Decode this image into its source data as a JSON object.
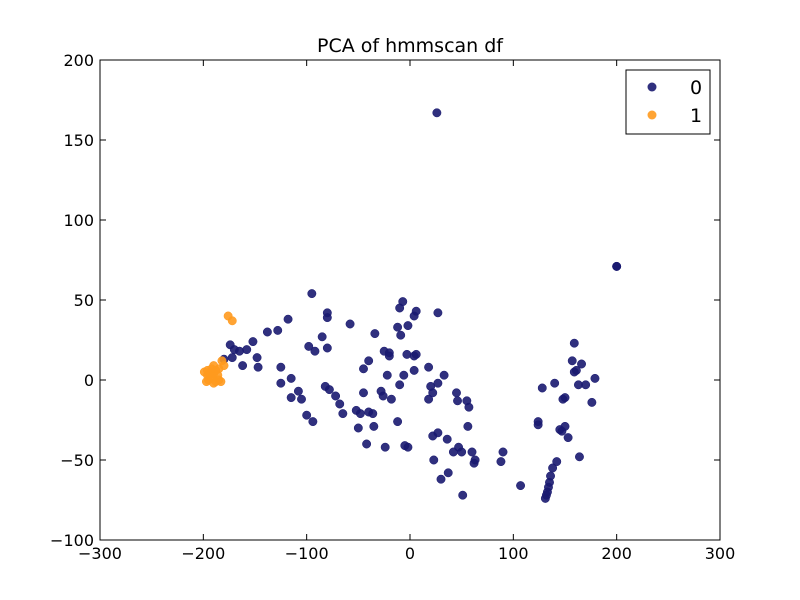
{
  "chart_data": {
    "type": "scatter",
    "title": "PCA of hmmscan df",
    "xlabel": "",
    "ylabel": "",
    "xlim": [
      -300,
      300
    ],
    "ylim": [
      -100,
      200
    ],
    "xticks": [
      -300,
      -200,
      -100,
      0,
      100,
      200,
      300
    ],
    "yticks": [
      -100,
      -50,
      0,
      50,
      100,
      150,
      200
    ],
    "xtick_labels": [
      "−300",
      "−200",
      "−100",
      "0",
      "100",
      "200",
      "300"
    ],
    "ytick_labels": [
      "−100",
      "−50",
      "0",
      "50",
      "100",
      "150",
      "200"
    ],
    "grid": false,
    "legend_position": "top-right",
    "series": [
      {
        "name": "0",
        "color": "#191970",
        "points": [
          [
            26,
            167
          ],
          [
            200,
            71
          ],
          [
            200,
            71
          ],
          [
            -95,
            54
          ],
          [
            -58,
            35
          ],
          [
            -80,
            42
          ],
          [
            -80,
            39
          ],
          [
            -118,
            38
          ],
          [
            -138,
            30
          ],
          [
            -128,
            31
          ],
          [
            -85,
            27
          ],
          [
            -98,
            21
          ],
          [
            -92,
            18
          ],
          [
            -80,
            20
          ],
          [
            -34,
            29
          ],
          [
            -12,
            33
          ],
          [
            -7,
            49
          ],
          [
            -10,
            45
          ],
          [
            4,
            40
          ],
          [
            6,
            43
          ],
          [
            27,
            42
          ],
          [
            -2,
            34
          ],
          [
            -9,
            28
          ],
          [
            -25,
            18
          ],
          [
            -20,
            17
          ],
          [
            -20,
            15
          ],
          [
            -40,
            12
          ],
          [
            -45,
            7
          ],
          [
            -22,
            3
          ],
          [
            -6,
            3
          ],
          [
            -3,
            16
          ],
          [
            4,
            15
          ],
          [
            6,
            16
          ],
          [
            18,
            8
          ],
          [
            33,
            3
          ],
          [
            4,
            6
          ],
          [
            -180,
            13
          ],
          [
            -174,
            22
          ],
          [
            -170,
            19
          ],
          [
            -172,
            14
          ],
          [
            -165,
            18
          ],
          [
            -158,
            19
          ],
          [
            -152,
            24
          ],
          [
            -148,
            14
          ],
          [
            -147,
            8
          ],
          [
            -162,
            9
          ],
          [
            -125,
            8
          ],
          [
            -115,
            1
          ],
          [
            -125,
            -2
          ],
          [
            -108,
            -7
          ],
          [
            -115,
            -11
          ],
          [
            -105,
            -12
          ],
          [
            -100,
            -22
          ],
          [
            -94,
            -26
          ],
          [
            -82,
            -4
          ],
          [
            -78,
            -6
          ],
          [
            -72,
            -10
          ],
          [
            -68,
            -15
          ],
          [
            -65,
            -21
          ],
          [
            -52,
            -19
          ],
          [
            -48,
            -21
          ],
          [
            -50,
            -30
          ],
          [
            -45,
            -8
          ],
          [
            -40,
            -20
          ],
          [
            -36,
            -21
          ],
          [
            -42,
            -40
          ],
          [
            -35,
            -29
          ],
          [
            -28,
            -7
          ],
          [
            -26,
            -10
          ],
          [
            -24,
            -42
          ],
          [
            -18,
            -12
          ],
          [
            -12,
            -26
          ],
          [
            -10,
            -3
          ],
          [
            -2,
            -42
          ],
          [
            -5,
            -41
          ],
          [
            20,
            -4
          ],
          [
            22,
            -35
          ],
          [
            27,
            -2
          ],
          [
            22,
            -8
          ],
          [
            27,
            -33
          ],
          [
            18,
            -12
          ],
          [
            36,
            -37
          ],
          [
            42,
            -45
          ],
          [
            46,
            -13
          ],
          [
            47,
            -42
          ],
          [
            45,
            -8
          ],
          [
            50,
            -45
          ],
          [
            23,
            -50
          ],
          [
            30,
            -62
          ],
          [
            37,
            -58
          ],
          [
            55,
            -13
          ],
          [
            57,
            -17
          ],
          [
            56,
            -29
          ],
          [
            60,
            -45
          ],
          [
            62,
            -52
          ],
          [
            63,
            -50
          ],
          [
            51,
            -72
          ],
          [
            88,
            -51
          ],
          [
            90,
            -45
          ],
          [
            107,
            -66
          ],
          [
            124,
            -26
          ],
          [
            124,
            -28
          ],
          [
            128,
            -5
          ],
          [
            131,
            -74
          ],
          [
            132,
            -72
          ],
          [
            133,
            -70
          ],
          [
            134,
            -67
          ],
          [
            135,
            -64
          ],
          [
            136,
            -60
          ],
          [
            138,
            -55
          ],
          [
            142,
            -51
          ],
          [
            140,
            -2
          ],
          [
            145,
            -31
          ],
          [
            147,
            -32
          ],
          [
            148,
            -12
          ],
          [
            150,
            -29
          ],
          [
            150,
            -11
          ],
          [
            153,
            -36
          ],
          [
            157,
            12
          ],
          [
            159,
            23
          ],
          [
            159,
            5
          ],
          [
            161,
            6
          ],
          [
            163,
            -3
          ],
          [
            164,
            -48
          ],
          [
            166,
            10
          ],
          [
            170,
            -3
          ],
          [
            176,
            -14
          ],
          [
            179,
            1
          ]
        ]
      },
      {
        "name": "1",
        "color": "#ff9a1e",
        "points": [
          [
            -176,
            40
          ],
          [
            -172,
            37
          ],
          [
            -182,
            12
          ],
          [
            -180,
            9
          ],
          [
            -185,
            7
          ],
          [
            -188,
            6
          ],
          [
            -190,
            4
          ],
          [
            -192,
            2
          ],
          [
            -195,
            0
          ],
          [
            -197,
            -1
          ],
          [
            -196,
            3
          ],
          [
            -199,
            5
          ],
          [
            -193,
            5
          ],
          [
            -190,
            9
          ],
          [
            -188,
            -1
          ],
          [
            -185,
            0
          ],
          [
            -190,
            -2
          ],
          [
            -194,
            3
          ],
          [
            -186,
            3
          ],
          [
            -183,
            -1
          ],
          [
            -192,
            7
          ],
          [
            -196,
            6
          ]
        ]
      }
    ]
  }
}
